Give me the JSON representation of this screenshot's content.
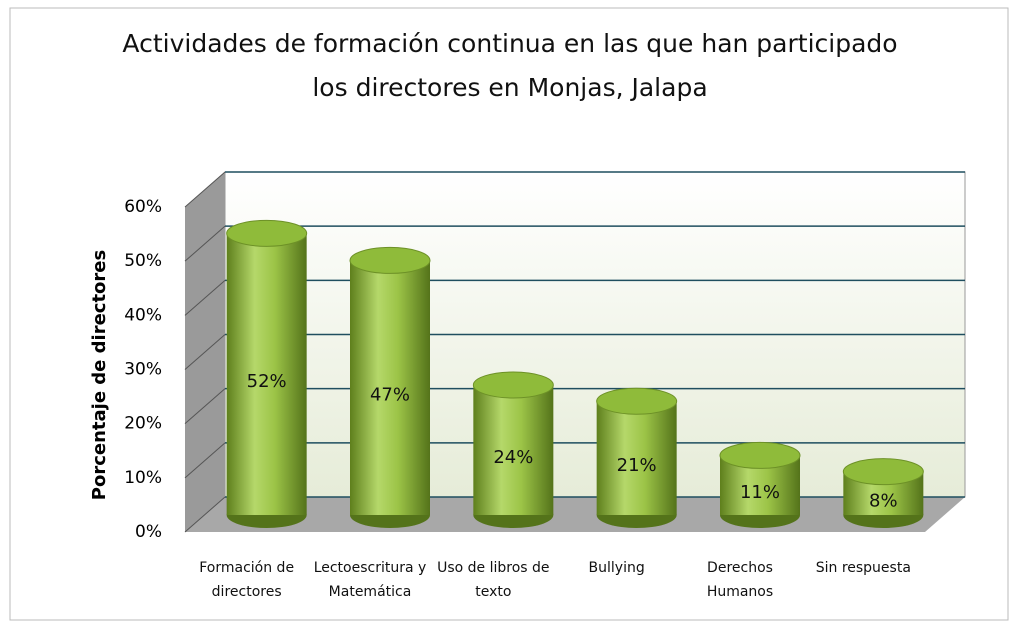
{
  "chart_data": {
    "type": "bar3d",
    "title": "Actividades de formación continua en las que han participado los directores en Monjas, Jalapa",
    "y_label": "Porcentaje de directores",
    "categories": [
      "Formación de directores",
      "Lectoescritura y Matemática",
      "Uso de libros de texto",
      "Bullying",
      "Derechos Humanos",
      "Sin respuesta"
    ],
    "values": [
      52,
      47,
      24,
      21,
      11,
      8
    ],
    "value_labels": [
      "52%",
      "47%",
      "24%",
      "21%",
      "11%",
      "8%"
    ],
    "color": "#8fbb3a",
    "ylim": [
      0,
      60
    ],
    "yticks": [
      {
        "value": 0,
        "label": "0%"
      },
      {
        "value": 10,
        "label": "10%"
      },
      {
        "value": 20,
        "label": "20%"
      },
      {
        "value": 30,
        "label": "30%"
      },
      {
        "value": 40,
        "label": "40%"
      },
      {
        "value": 50,
        "label": "50%"
      },
      {
        "value": 60,
        "label": "60%"
      }
    ],
    "grid": true
  }
}
